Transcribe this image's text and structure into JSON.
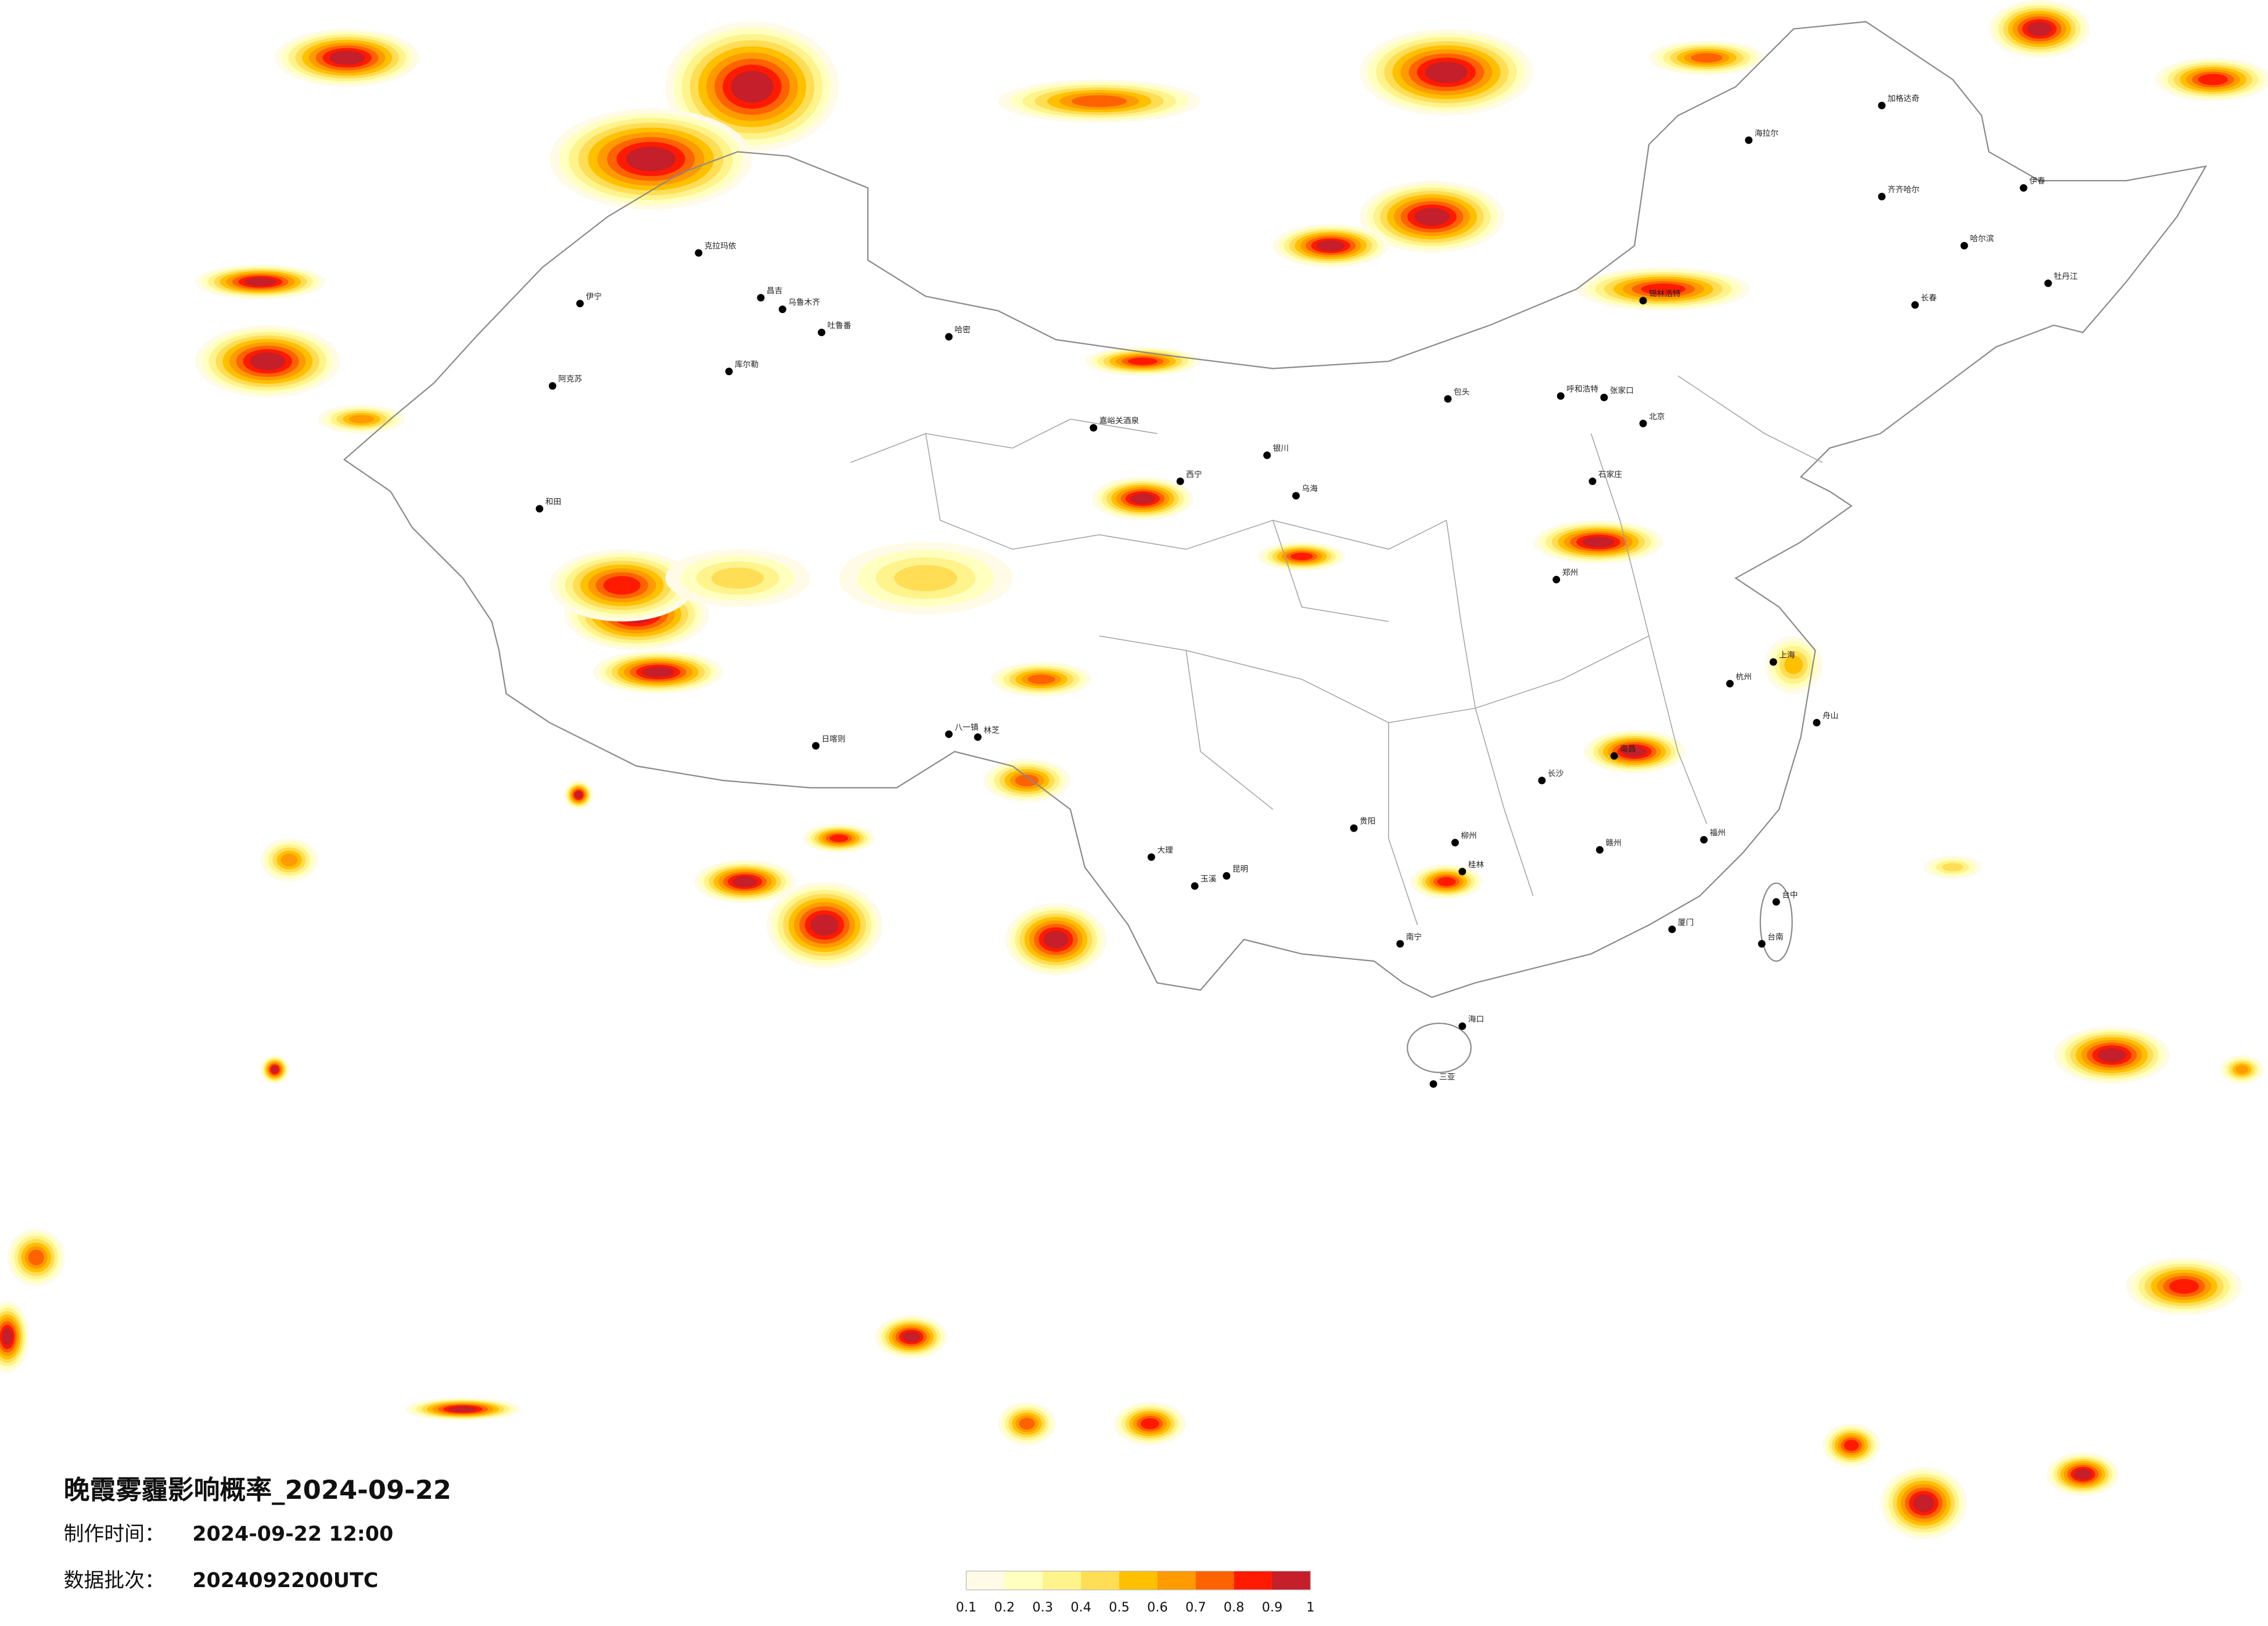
{
  "header": {
    "title": "晚霞雾霾影响概率_2024-09-22",
    "production_time": {
      "label": "制作时间：",
      "value": "2024-09-22 12:00"
    },
    "data_batch": {
      "label": "数据批次：",
      "value": "2024092200UTC"
    }
  },
  "legend": {
    "colors": [
      "#fffbe6",
      "#ffffbf",
      "#fff38c",
      "#ffdd55",
      "#ffc000",
      "#ff9a00",
      "#ff6200",
      "#ff1a00",
      "#c41f2a"
    ],
    "ticks": [
      0.1,
      0.2,
      0.3,
      0.4,
      0.5,
      0.6,
      0.7,
      0.8,
      0.9,
      1
    ]
  },
  "cities": [
    "克拉玛依",
    "伊宁",
    "昌吉",
    "乌鲁木齐",
    "吐鲁番",
    "哈密",
    "库尔勒",
    "阿克苏",
    "和田",
    "嘉峪关酒泉",
    "日喀则",
    "林芝",
    "八一镇",
    "呼和浩特",
    "包头",
    "北京",
    "石家庄",
    "郑州",
    "西宁",
    "银川",
    "贵阳",
    "昆明",
    "南宁",
    "海口",
    "三亚",
    "台中",
    "台南",
    "哈尔滨",
    "齐齐哈尔",
    "长春",
    "海拉尔",
    "加格达奇",
    "伊春",
    "牡丹江",
    "锡林浩特",
    "张家口",
    "长沙",
    "南昌",
    "福州",
    "杭州",
    "上海",
    "乌海",
    "玉溪",
    "大理",
    "桂林",
    "柳州",
    "赣州",
    "厦门",
    "舟山"
  ]
}
